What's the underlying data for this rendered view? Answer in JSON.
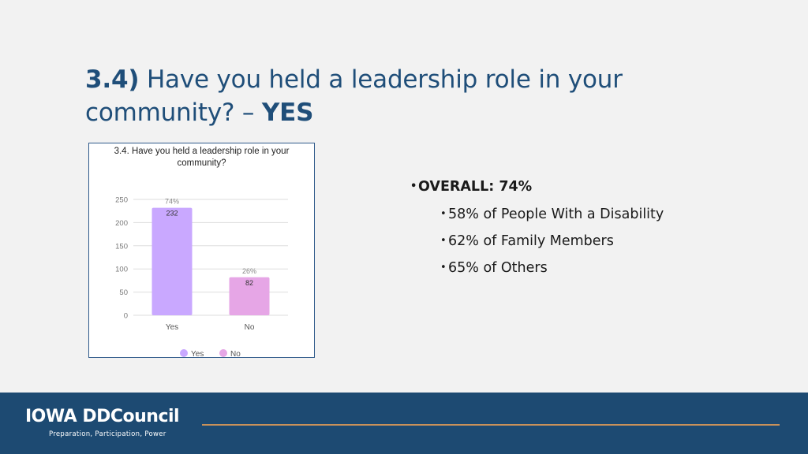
{
  "slide": {
    "title_number": "3.4)",
    "title_text": " Have you held a leadership role in your community? – ",
    "title_answer": "YES"
  },
  "bullets": {
    "overall": "OVERALL: 74%",
    "items": [
      "58% of People With a Disability",
      "62% of Family Members",
      "65% of Others"
    ]
  },
  "footer": {
    "logo_name": "IOWA DDCouncil",
    "tagline": "Preparation, Participation, Power"
  },
  "colors": {
    "title": "#1f4e79",
    "footer_bg": "#1d4a72",
    "footer_rule": "#c9915a",
    "bar_yes": "#c9a8ff",
    "bar_no": "#e6a6e6"
  },
  "chart_data": {
    "type": "bar",
    "title": "3.4. Have you held a leadership role in your community?",
    "categories": [
      "Yes",
      "No"
    ],
    "values": [
      232,
      82
    ],
    "percent_labels": [
      "74%",
      "26%"
    ],
    "ylim": [
      0,
      250
    ],
    "yticks": [
      0,
      50,
      100,
      150,
      200,
      250
    ],
    "grid": true,
    "legend": {
      "position": "bottom",
      "entries": [
        {
          "label": "Yes",
          "color": "#c9a8ff"
        },
        {
          "label": "No",
          "color": "#e6a6e6"
        }
      ]
    }
  }
}
